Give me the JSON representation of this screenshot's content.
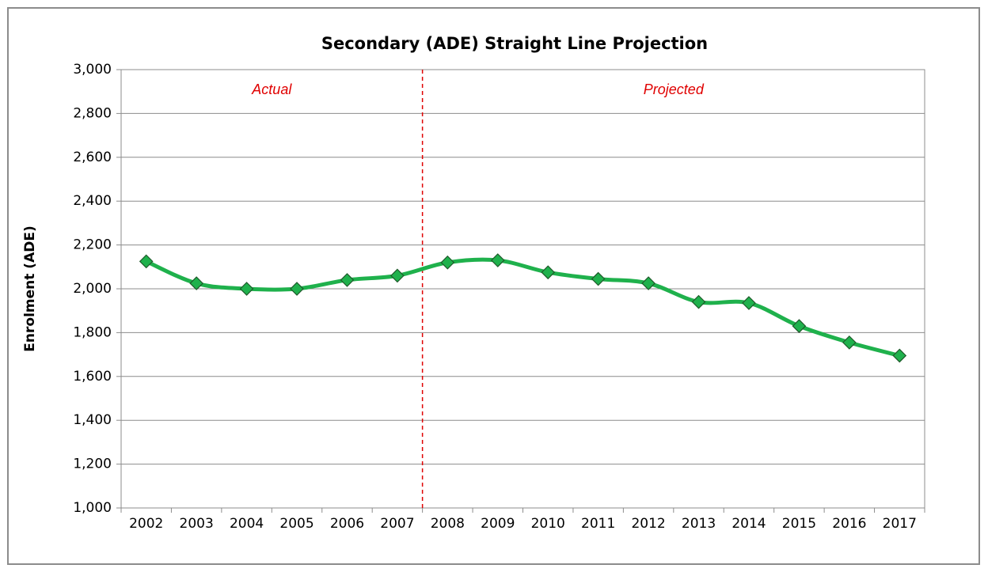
{
  "chart_data": {
    "type": "line",
    "title": "Secondary (ADE) Straight Line Projection",
    "y_label": "Enrolment (ADE)",
    "annotations": [
      "Actual",
      "Projected"
    ],
    "categories": [
      "2002",
      "2003",
      "2004",
      "2005",
      "2006",
      "2007",
      "2008",
      "2009",
      "2010",
      "2011",
      "2012",
      "2013",
      "2014",
      "2015",
      "2016",
      "2017"
    ],
    "series": [
      {
        "name": "Enrolment",
        "color": "#1fb14c",
        "values": [
          2125,
          2025,
          2000,
          2000,
          2040,
          2060,
          2120,
          2130,
          2075,
          2045,
          2025,
          1940,
          1935,
          1830,
          1755,
          1695
        ]
      }
    ],
    "ylim": [
      1000,
      3000
    ],
    "yticks": [
      {
        "value": 1000,
        "label": "1,000"
      },
      {
        "value": 1200,
        "label": "1,200"
      },
      {
        "value": 1400,
        "label": "1,400"
      },
      {
        "value": 1600,
        "label": "1,600"
      },
      {
        "value": 1800,
        "label": "1,800"
      },
      {
        "value": 2000,
        "label": "2,000"
      },
      {
        "value": 2200,
        "label": "2,200"
      },
      {
        "value": 2400,
        "label": "2,400"
      },
      {
        "value": 2600,
        "label": "2,600"
      },
      {
        "value": 2800,
        "label": "2,800"
      },
      {
        "value": 3000,
        "label": "3,000"
      }
    ],
    "grid": true
  }
}
